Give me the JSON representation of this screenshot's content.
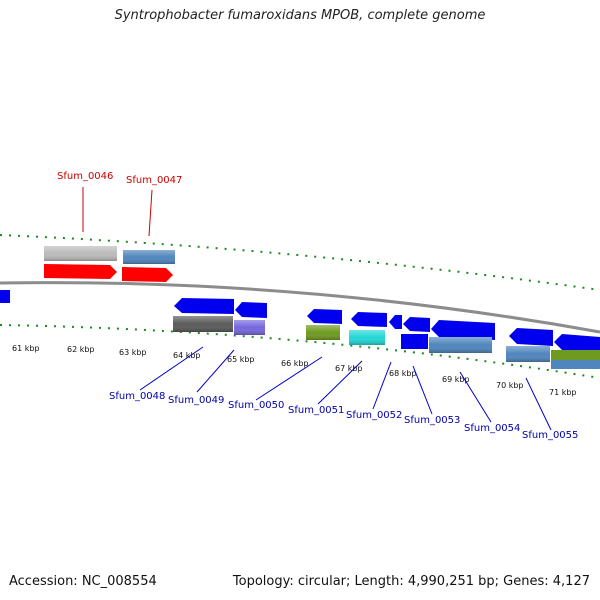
{
  "title": "Syntrophobacter fumaroxidans MPOB, complete genome",
  "footer": {
    "accession": "Accession: NC_008554",
    "stats": "Topology: circular; Length: 4,990,251 bp; Genes: 4,127"
  },
  "scale_labels": [
    "61 kbp",
    "62 kbp",
    "63 kbp",
    "64 kbp",
    "65 kbp",
    "66 kbp",
    "67 kbp",
    "68 kbp",
    "69 kbp",
    "70 kbp",
    "71 kbp"
  ],
  "colors": {
    "backbone": "#8c8c8c",
    "tick": "#1a8a1a",
    "red": "#ff0000",
    "blue": "#0000ee",
    "grey": "#bbbbbb",
    "dark_grey": "#5a5a5a",
    "steel": "#4f86bd",
    "purple": "#7566dd",
    "olive": "#6f9a20",
    "cyan": "#22d6d6",
    "top_label": "#cc0000",
    "bottom_label": "#0000aa"
  },
  "gene_labels_top": [
    "Sfum_0046",
    "Sfum_0047"
  ],
  "gene_labels_bottom": [
    "Sfum_0048",
    "Sfum_0049",
    "Sfum_0050",
    "Sfum_0051",
    "Sfum_0052",
    "Sfum_0053",
    "Sfum_0054",
    "Sfum_0055"
  ]
}
